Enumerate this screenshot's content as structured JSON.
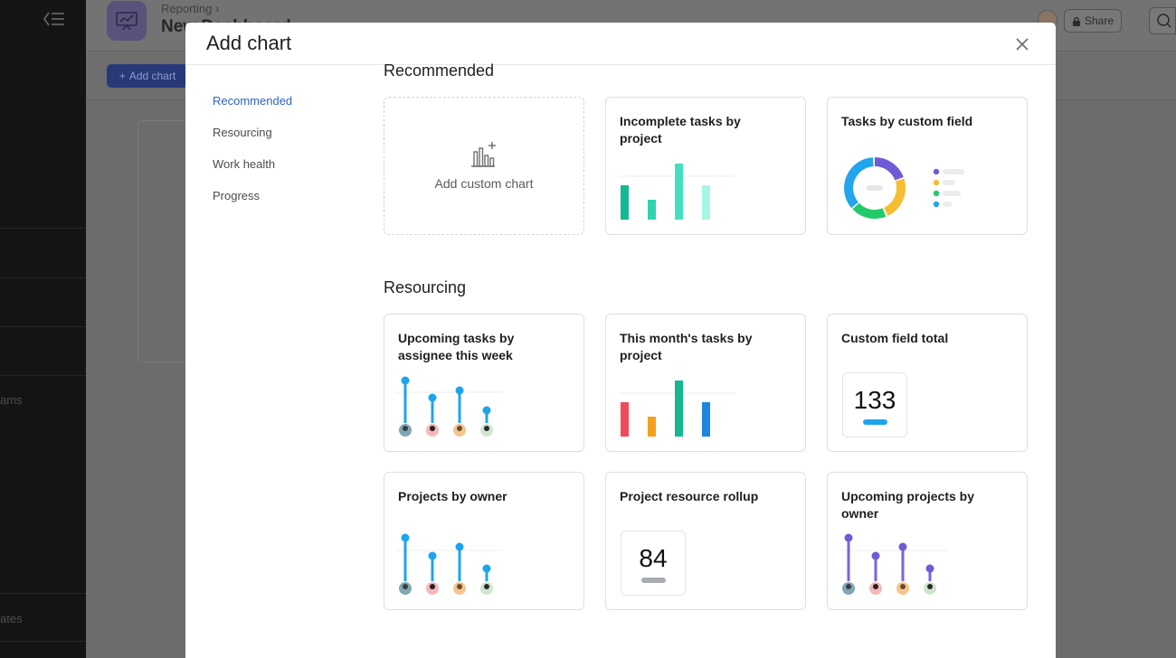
{
  "background": {
    "breadcrumb": "Reporting",
    "page_title": "New Dashboard",
    "add_chart_label": "Add chart",
    "share_label": "Share",
    "sidebar_fragments": [
      "ams",
      "ates"
    ]
  },
  "modal": {
    "title": "Add chart",
    "nav": [
      "Recommended",
      "Resourcing",
      "Work health",
      "Progress"
    ],
    "active_nav": "Recommended",
    "sections": {
      "recommended": {
        "title": "Recommended",
        "custom_chart_label": "Add custom chart",
        "card_incomplete": "Incomplete tasks by project",
        "card_custom_field": "Tasks by custom field"
      },
      "resourcing": {
        "title": "Resourcing",
        "card_upcoming_assignee": "Upcoming tasks by assignee this week",
        "card_month_project": "This month's tasks by project",
        "card_custom_total": "Custom field total",
        "custom_total_value": "133",
        "card_projects_owner": "Projects by owner",
        "card_resource_rollup": "Project resource rollup",
        "resource_rollup_value": "84",
        "card_upcoming_projects": "Upcoming projects by owner"
      }
    }
  },
  "colors": {
    "accent_blue": "#2e62c9",
    "teal_dark": "#14b892",
    "teal_mid": "#43e0c0",
    "teal_light": "#a6f5e4",
    "lollipop_blue": "#1ca4ee",
    "lollipop_purple": "#6d5cd6",
    "bar_red": "#ef4a5b",
    "bar_orange": "#f0a21c",
    "bar_green": "#14b892",
    "bar_blue": "#1d86e0",
    "donut_purple": "#6d5cd6",
    "donut_yellow": "#f6be33",
    "donut_green": "#24c96a",
    "donut_blue": "#22a4ee"
  }
}
